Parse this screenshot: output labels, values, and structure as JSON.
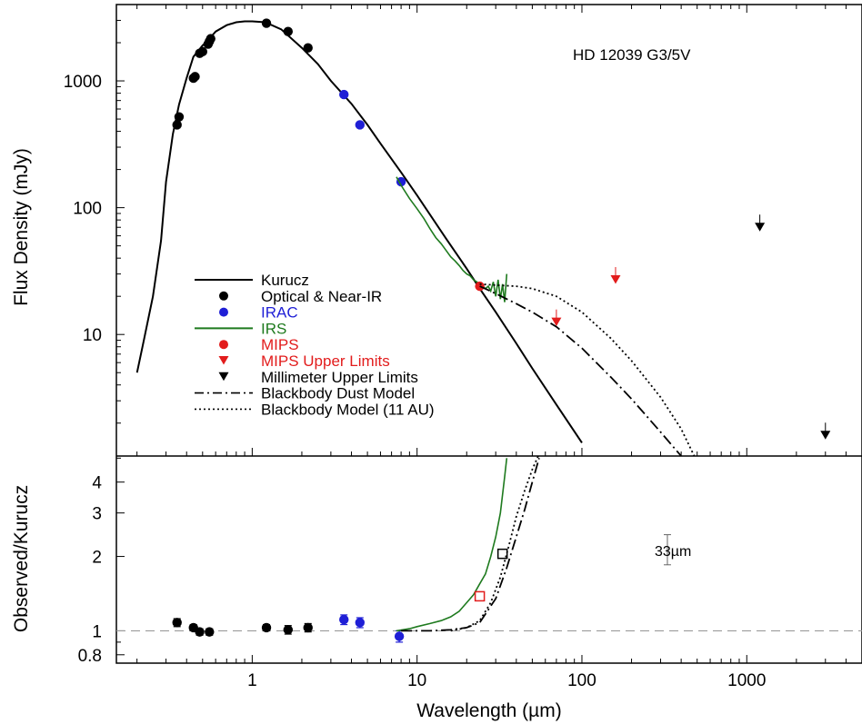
{
  "chart_data": {
    "type": "scatter",
    "title": "HD 12039  G3/5V",
    "xlabel": "Wavelength (µm)",
    "x_scale": "log",
    "xlim": [
      0.15,
      5000
    ],
    "x_ticks": [
      {
        "value": 1,
        "label": "1"
      },
      {
        "value": 10,
        "label": "10"
      },
      {
        "value": 100,
        "label": "100"
      },
      {
        "value": 1000,
        "label": "1000"
      }
    ],
    "top_panel": {
      "ylabel": "Flux Density (mJy)",
      "y_scale": "log",
      "ylim": [
        1.1,
        4000
      ],
      "y_ticks": [
        {
          "value": 10,
          "label": "10"
        },
        {
          "value": 100,
          "label": "100"
        },
        {
          "value": 1000,
          "label": "1000"
        }
      ],
      "legend_position": "center-left",
      "legend": [
        {
          "label": "Kurucz",
          "symbol": "line",
          "color": "#000000",
          "text_color": "#000000"
        },
        {
          "label": "Optical & Near-IR",
          "symbol": "circle",
          "color": "#000000",
          "text_color": "#000000"
        },
        {
          "label": "IRAC",
          "symbol": "circle",
          "color": "#1f1fd6",
          "text_color": "#1f1fd6"
        },
        {
          "label": "IRS",
          "symbol": "line",
          "color": "#1e7a1e",
          "text_color": "#1e7a1e"
        },
        {
          "label": "MIPS",
          "symbol": "circle",
          "color": "#e21c1c",
          "text_color": "#e21c1c"
        },
        {
          "label": "MIPS Upper Limits",
          "symbol": "triangle-down",
          "color": "#e21c1c",
          "text_color": "#e21c1c"
        },
        {
          "label": "Millimeter Upper Limits",
          "symbol": "triangle-down",
          "color": "#000000",
          "text_color": "#000000"
        },
        {
          "label": "Blackbody Dust Model",
          "symbol": "dashdot",
          "color": "#000000",
          "text_color": "#000000"
        },
        {
          "label": "Blackbody Model (11 AU)",
          "symbol": "dotted",
          "color": "#000000",
          "text_color": "#000000"
        }
      ],
      "series": [
        {
          "name": "Kurucz",
          "kind": "line",
          "color": "#000000",
          "x": [
            0.2,
            0.22,
            0.25,
            0.28,
            0.3,
            0.33,
            0.36,
            0.4,
            0.44,
            0.5,
            0.55,
            0.6,
            0.7,
            0.8,
            0.9,
            1.0,
            1.2,
            1.5,
            2.0,
            2.5,
            3.0,
            4.0,
            5.0,
            6.0,
            8.0,
            10,
            15,
            20,
            24,
            30,
            40,
            50,
            70,
            100
          ],
          "y": [
            5,
            9,
            20,
            55,
            160,
            380,
            650,
            1050,
            1550,
            1900,
            2150,
            2450,
            2750,
            2900,
            2950,
            2950,
            2900,
            2550,
            1820,
            1360,
            1000,
            660,
            450,
            320,
            190,
            125,
            57,
            33,
            23,
            15,
            8.5,
            5.4,
            2.8,
            1.4
          ]
        },
        {
          "name": "Optical & Near-IR",
          "kind": "points",
          "color": "#000000",
          "x": [
            0.35,
            0.36,
            0.44,
            0.45,
            0.48,
            0.5,
            0.54,
            0.55,
            0.56,
            1.22,
            1.65,
            2.18
          ],
          "y": [
            450,
            520,
            1050,
            1080,
            1650,
            1700,
            1950,
            2050,
            2150,
            2850,
            2450,
            1820
          ]
        },
        {
          "name": "IRAC",
          "kind": "points",
          "color": "#1f1fd6",
          "x": [
            3.6,
            4.5,
            8.0
          ],
          "y": [
            780,
            450,
            160
          ]
        },
        {
          "name": "IRS",
          "kind": "line",
          "color": "#1e7a1e",
          "x": [
            7.5,
            8,
            9,
            10,
            11,
            12,
            13,
            14,
            15,
            16,
            17,
            18,
            19,
            20,
            21,
            22,
            23,
            24,
            25,
            26,
            27,
            28,
            29,
            30,
            31,
            32,
            33,
            34,
            35
          ],
          "y": [
            175,
            150,
            118,
            98,
            82,
            68,
            58,
            52,
            46,
            41,
            38,
            35,
            32,
            30,
            29,
            27,
            26,
            25,
            24,
            23,
            24,
            22,
            26,
            20,
            27,
            19,
            25,
            18,
            30
          ]
        },
        {
          "name": "MIPS",
          "kind": "points",
          "color": "#e21c1c",
          "x": [
            24
          ],
          "y": [
            24
          ]
        },
        {
          "name": "MIPS Upper Limits",
          "kind": "triangles",
          "color": "#e21c1c",
          "x": [
            70,
            160
          ],
          "y": [
            12.5,
            27
          ]
        },
        {
          "name": "Millimeter Upper Limits",
          "kind": "triangles",
          "color": "#000000",
          "x": [
            1200,
            3000
          ],
          "y": [
            70,
            1.6
          ]
        },
        {
          "name": "Blackbody Dust Model",
          "kind": "dashdot",
          "color": "#000000",
          "x": [
            24,
            30,
            40,
            50,
            70,
            100,
            150,
            200,
            300,
            400
          ],
          "y": [
            24,
            21,
            17.5,
            15,
            11.5,
            7.8,
            4.6,
            3.1,
            1.7,
            1.1
          ]
        },
        {
          "name": "Blackbody Model (11 AU)",
          "kind": "dotted",
          "color": "#000000",
          "x": [
            24,
            30,
            40,
            50,
            70,
            100,
            150,
            200,
            300,
            400,
            480
          ],
          "y": [
            25,
            24.5,
            24,
            23,
            20,
            15,
            9.3,
            6.2,
            3.2,
            1.8,
            1.1
          ]
        }
      ]
    },
    "bottom_panel": {
      "ylabel": "Observed/Kurucz",
      "y_scale": "log",
      "ylim": [
        0.74,
        5.1
      ],
      "y_ticks": [
        {
          "value": 0.8,
          "label": "0.8"
        },
        {
          "value": 1,
          "label": "1"
        },
        {
          "value": 2,
          "label": "2"
        },
        {
          "value": 3,
          "label": "3"
        },
        {
          "value": 4,
          "label": "4"
        }
      ],
      "reference_line": 1,
      "annotation": {
        "text": "33µm",
        "x": 330,
        "y": 2.1,
        "err_low": 1.85,
        "err_high": 2.45
      },
      "series": [
        {
          "name": "Optical & Near-IR",
          "kind": "points",
          "color": "#000000",
          "x": [
            0.35,
            0.44,
            0.48,
            0.55,
            1.22,
            1.65,
            2.18
          ],
          "y": [
            1.08,
            1.03,
            0.99,
            0.99,
            1.03,
            1.01,
            1.03
          ],
          "err": [
            0.04,
            0.03,
            0.03,
            0.03,
            0.03,
            0.04,
            0.04
          ]
        },
        {
          "name": "IRAC",
          "kind": "points",
          "color": "#1f1fd6",
          "x": [
            3.6,
            4.5,
            7.8
          ],
          "y": [
            1.11,
            1.08,
            0.95
          ],
          "err": [
            0.05,
            0.05,
            0.05
          ]
        },
        {
          "name": "IRS",
          "kind": "line",
          "color": "#1e7a1e",
          "x": [
            7.5,
            9,
            10,
            12,
            14,
            16,
            18,
            20,
            22,
            24,
            26,
            28,
            30,
            32,
            34,
            35
          ],
          "y": [
            1.0,
            1.02,
            1.04,
            1.07,
            1.1,
            1.14,
            1.2,
            1.3,
            1.4,
            1.55,
            1.7,
            2.0,
            2.4,
            3.0,
            4.2,
            5.0
          ]
        },
        {
          "name": "MIPS",
          "kind": "square",
          "color": "#e21c1c",
          "x": [
            24
          ],
          "y": [
            1.38
          ]
        },
        {
          "name": "33µm",
          "kind": "square",
          "color": "#000000",
          "x": [
            33
          ],
          "y": [
            2.05
          ]
        },
        {
          "name": "Blackbody Dust Model",
          "kind": "dashdot",
          "color": "#000000",
          "x": [
            8,
            12,
            16,
            20,
            24,
            30,
            35,
            40,
            45,
            50,
            55
          ],
          "y": [
            1.0,
            1.0,
            1.01,
            1.03,
            1.08,
            1.35,
            1.8,
            2.4,
            3.1,
            4.0,
            5.0
          ]
        },
        {
          "name": "Blackbody Model (11 AU)",
          "kind": "dotted",
          "color": "#000000",
          "x": [
            16,
            20,
            24,
            28,
            32,
            36,
            40,
            45,
            50,
            55
          ],
          "y": [
            1.0,
            1.03,
            1.1,
            1.3,
            1.65,
            2.2,
            2.9,
            3.7,
            4.5,
            5.2
          ]
        }
      ]
    }
  }
}
